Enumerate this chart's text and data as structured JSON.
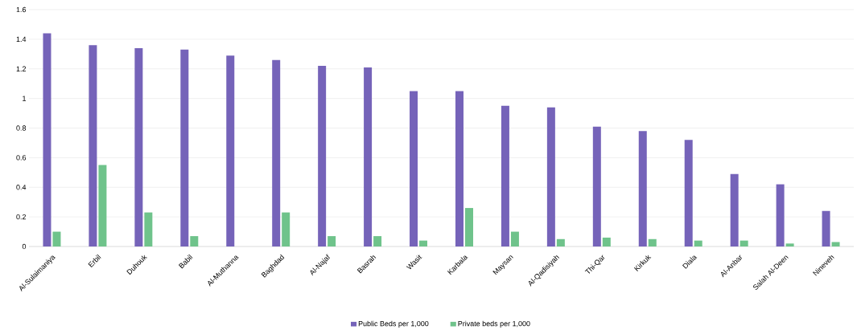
{
  "chart_data": {
    "type": "bar",
    "categories": [
      "Al-Sulaimaniya",
      "Erbil",
      "Duhouk",
      "Babil",
      "Al-Muthanna",
      "Baghdad",
      "Al-Najaf",
      "Basrah",
      "Wasit",
      "Karbala",
      "Maysan",
      "Al-Qadisiyah",
      "Thi-Qar",
      "Kirkuk",
      "Diala",
      "Al-Anbar",
      "Salah Al-Deen",
      "Nineveh"
    ],
    "series": [
      {
        "name": "Public Beds per 1,000",
        "color": "#7563b9",
        "values": [
          1.44,
          1.36,
          1.34,
          1.33,
          1.29,
          1.26,
          1.22,
          1.21,
          1.05,
          1.05,
          0.95,
          0.94,
          0.81,
          0.78,
          0.72,
          0.49,
          0.42,
          0.24
        ]
      },
      {
        "name": "Private beds per 1,000",
        "color": "#6fc38b",
        "values": [
          0.1,
          0.55,
          0.23,
          0.07,
          0,
          0.23,
          0.07,
          0.07,
          0.04,
          0.26,
          0.1,
          0.05,
          0.06,
          0.05,
          0.04,
          0.04,
          0.02,
          0.03
        ]
      }
    ],
    "ylim": [
      0,
      1.6
    ],
    "yticks": [
      0,
      0.2,
      0.4,
      0.6,
      0.8,
      1,
      1.2,
      1.4,
      1.6
    ],
    "grid": "y",
    "legend": "bottom"
  }
}
